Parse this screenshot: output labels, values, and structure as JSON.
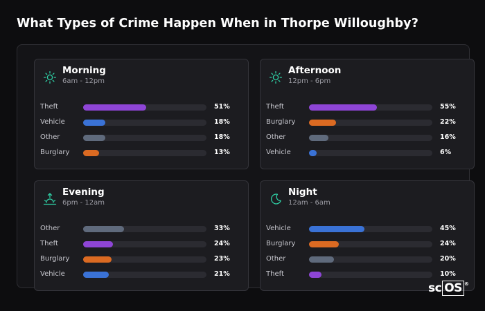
{
  "title": "What Types of Crime Happen When in Thorpe Willoughby?",
  "colors": {
    "Theft": "#8e45d6",
    "Vehicle": "#3a72d6",
    "Other": "#5f6a7c",
    "Burglary": "#db6a22",
    "icon_accent": "#2fd1a6"
  },
  "chart_data": {
    "type": "bar",
    "unit": "%",
    "panels": [
      {
        "name": "Morning",
        "range": "6am - 12pm",
        "icon": "sun-icon",
        "rows": [
          {
            "category": "Theft",
            "value": 51,
            "label": "51%"
          },
          {
            "category": "Vehicle",
            "value": 18,
            "label": "18%"
          },
          {
            "category": "Other",
            "value": 18,
            "label": "18%"
          },
          {
            "category": "Burglary",
            "value": 13,
            "label": "13%"
          }
        ]
      },
      {
        "name": "Afternoon",
        "range": "12pm - 6pm",
        "icon": "sun-icon",
        "rows": [
          {
            "category": "Theft",
            "value": 55,
            "label": "55%"
          },
          {
            "category": "Burglary",
            "value": 22,
            "label": "22%"
          },
          {
            "category": "Other",
            "value": 16,
            "label": "16%"
          },
          {
            "category": "Vehicle",
            "value": 6,
            "label": "6%"
          }
        ]
      },
      {
        "name": "Evening",
        "range": "6pm - 12am",
        "icon": "sunset-icon",
        "rows": [
          {
            "category": "Other",
            "value": 33,
            "label": "33%"
          },
          {
            "category": "Theft",
            "value": 24,
            "label": "24%"
          },
          {
            "category": "Burglary",
            "value": 23,
            "label": "23%"
          },
          {
            "category": "Vehicle",
            "value": 21,
            "label": "21%"
          }
        ]
      },
      {
        "name": "Night",
        "range": "12am - 6am",
        "icon": "moon-icon",
        "rows": [
          {
            "category": "Vehicle",
            "value": 45,
            "label": "45%"
          },
          {
            "category": "Burglary",
            "value": 24,
            "label": "24%"
          },
          {
            "category": "Other",
            "value": 20,
            "label": "20%"
          },
          {
            "category": "Theft",
            "value": 10,
            "label": "10%"
          }
        ]
      }
    ]
  },
  "logo": {
    "prefix": "sc",
    "boxed": "OS",
    "reg": "®"
  }
}
